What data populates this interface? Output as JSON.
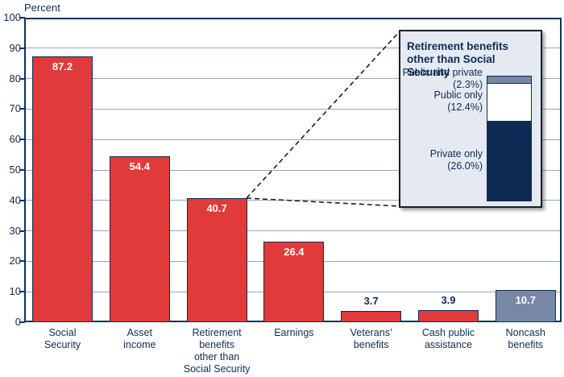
{
  "colors": {
    "bar_red": "#e03a3a",
    "bar_slate": "#7787a6",
    "navy_text_axis": "#0e2d55",
    "gridline": "#97a7bd",
    "inset_background": "#e5e9f2",
    "inset_border": "#181e2b",
    "inset_segment_navy": "#0e2b55",
    "inset_segment_white": "#ffffff",
    "value_label_white": "#ffffff"
  },
  "chart_data": {
    "type": "bar",
    "title": "",
    "ylabel": "Percent",
    "xlabel": "",
    "ylim": [
      0,
      100
    ],
    "yticks": [
      0,
      10,
      20,
      30,
      40,
      50,
      60,
      70,
      80,
      90,
      100
    ],
    "grid": true,
    "categories": [
      "Social\nSecurity",
      "Asset\nincome",
      "Retirement\nbenefits\nother than\nSocial Security",
      "Earnings",
      "Veterans’\nbenefits",
      "Cash public\nassistance",
      "Noncash\nbenefits"
    ],
    "values": [
      87.2,
      54.4,
      40.7,
      26.4,
      3.7,
      3.9,
      10.7
    ],
    "value_labels": [
      "87.2",
      "54.4",
      "40.7",
      "26.4",
      "3.7",
      "3.9",
      "10.7"
    ],
    "bar_colors": [
      "#e03a3a",
      "#e03a3a",
      "#e03a3a",
      "#e03a3a",
      "#e03a3a",
      "#e03a3a",
      "#7787a6"
    ],
    "bar_slugs": [
      "social-security",
      "asset-income",
      "retirement-benefits-other-than-social-security",
      "earnings",
      "veterans-benefits",
      "cash-public-assistance",
      "noncash-benefits"
    ],
    "inset": {
      "title_lines": [
        "Retirement benefits",
        "other than Social Security"
      ],
      "callout_source_category": "Retirement\nbenefits\nother than\nSocial Security",
      "segments": [
        {
          "label": "Public and private\n(2.3%)",
          "value": 2.3,
          "color": "#7787a6",
          "slug": "public-and-private"
        },
        {
          "label": "Public only\n(12.4%)",
          "value": 12.4,
          "color": "#ffffff",
          "slug": "public-only"
        },
        {
          "label": "Private only\n(26.0%)",
          "value": 26.0,
          "color": "#0e2b55",
          "slug": "private-only"
        }
      ]
    }
  }
}
